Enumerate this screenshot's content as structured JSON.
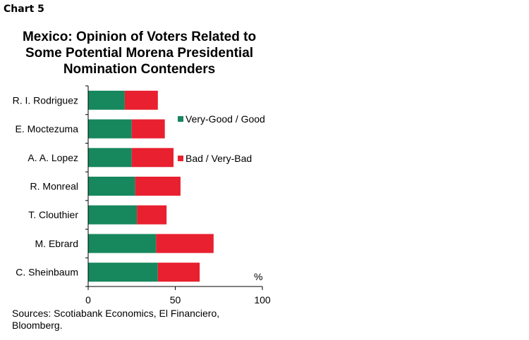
{
  "header": {
    "chart_label": "Chart 5"
  },
  "source": "Sources: Scotiabank Economics, El Financiero,\nBloomberg.",
  "chart_data": {
    "type": "bar",
    "orientation": "horizontal",
    "stacked": true,
    "title": "Mexico: Opinion of Voters Related to\nSome Potential Morena Presidential\nNomination Contenders",
    "categories": [
      "R. I. Rodriguez",
      "E. Moctezuma",
      "A. A. Lopez",
      "R. Monreal",
      "T. Clouthier",
      "M. Ebrard",
      "C. Sheinbaum"
    ],
    "series": [
      {
        "name": "Very-Good / Good",
        "color": "#17875e",
        "values": [
          21,
          25,
          25,
          27,
          28,
          39,
          40
        ]
      },
      {
        "name": "Bad / Very-Bad",
        "color": "#e8202f",
        "values": [
          19,
          19,
          24,
          26,
          17,
          33,
          24
        ]
      }
    ],
    "xlim": [
      0,
      100
    ],
    "xticks": [
      0,
      50,
      100
    ],
    "unit_label": "%",
    "grid": false,
    "legend_position": "right"
  }
}
